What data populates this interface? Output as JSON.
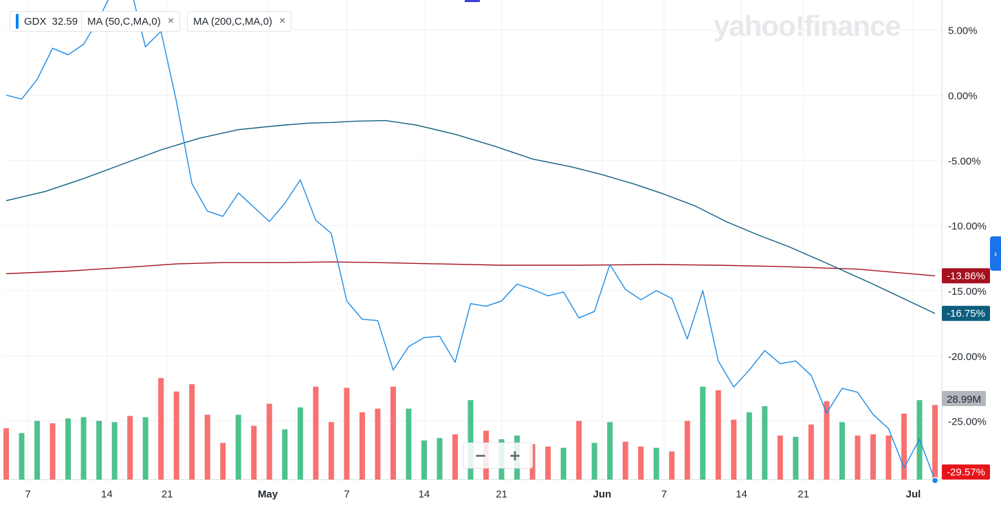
{
  "legend": {
    "ticker": "GDX",
    "price": "32.59",
    "ma50_label": "MA (50,C,MA,0)",
    "ma200_label": "MA (200,C,MA,0)",
    "close_symbol": "×"
  },
  "logo": "yahoo!finance",
  "zoom": {
    "minus": "−",
    "plus": "+"
  },
  "nav_arrow": "›",
  "colors": {
    "price": "#1a8ae5",
    "ma50": "#0d5e7e",
    "ma200": "#a5101e",
    "vol_up": "#4dc28d",
    "vol_down": "#f87171",
    "grid": "#eef0f3"
  },
  "chart_data": {
    "type": "line",
    "y_unit": "percent change",
    "ylim": [
      -29.5,
      7.3
    ],
    "y_ticks": [
      "5.00%",
      "0.00%",
      "-5.00%",
      "-10.00%",
      "-15.00%",
      "-20.00%",
      "-25.00%"
    ],
    "y_tick_values": [
      5,
      0,
      -5,
      -10,
      -15,
      -20,
      -25
    ],
    "x_ticks": [
      "7",
      "14",
      "21",
      "May",
      "7",
      "14",
      "21",
      "Jun",
      "7",
      "14",
      "21",
      "Jul"
    ],
    "x_tick_index": [
      1.4,
      6.5,
      10.4,
      16.9,
      22.0,
      27.0,
      32.0,
      38.5,
      42.5,
      47.5,
      51.5,
      58.6
    ],
    "series": [
      {
        "name": "GDX",
        "last_label": "-29.57%",
        "values": [
          0,
          -0.3,
          1.2,
          3.6,
          3.1,
          3.9,
          5.9,
          8.3,
          8.4,
          3.7,
          4.9,
          -0.5,
          -6.8,
          -8.9,
          -9.3,
          -7.5,
          -8.6,
          -9.7,
          -8.3,
          -6.5,
          -9.6,
          -10.6,
          -15.8,
          -17.2,
          -17.3,
          -21.1,
          -19.3,
          -18.6,
          -18.5,
          -20.5,
          -16.0,
          -16.2,
          -15.8,
          -14.5,
          -14.9,
          -15.4,
          -15.1,
          -17.1,
          -16.6,
          -13.0,
          -14.9,
          -15.7,
          -15.0,
          -15.6,
          -18.7,
          -15.0,
          -20.4,
          -22.4,
          -21.1,
          -19.6,
          -20.6,
          -20.4,
          -21.5,
          -24.4,
          -22.5,
          -22.8,
          -24.5,
          -25.6,
          -28.6,
          -26.4,
          -29.57
        ]
      },
      {
        "name": "MA (50,C,MA,0)",
        "last_label": "-16.75%",
        "values": [
          -8.1,
          -7.4,
          -6.4,
          -5.3,
          -4.2,
          -3.3,
          -2.65,
          -2.35,
          -2.15,
          -2.1,
          -2.0,
          -1.95,
          -2.3,
          -3.0,
          -3.9,
          -4.9,
          -5.5,
          -6.1,
          -6.8,
          -7.6,
          -8.5,
          -9.7,
          -10.7,
          -11.6,
          -12.9,
          -14.5,
          -16.75
        ],
        "x_index": [
          0,
          2.5,
          5,
          7.5,
          10,
          12.5,
          15,
          17.5,
          19.5,
          21,
          22.5,
          24.5,
          26.5,
          29,
          31.5,
          34,
          36.5,
          38.5,
          40.5,
          42.5,
          44.5,
          46.5,
          48.5,
          50.5,
          53,
          56,
          60
        ]
      },
      {
        "name": "MA (200,C,MA,0)",
        "last_label": "-13.86%",
        "values": [
          -13.7,
          -13.5,
          -13.2,
          -12.95,
          -12.85,
          -12.85,
          -12.8,
          -12.85,
          -12.95,
          -13.05,
          -13.05,
          -13.0,
          -13.05,
          -13.15,
          -13.35,
          -13.86
        ],
        "x_index": [
          0,
          4,
          8,
          11,
          14,
          18,
          21,
          24,
          28,
          32,
          37,
          42,
          46,
          50,
          55,
          60
        ]
      }
    ],
    "volume": {
      "last_label": "28.99M",
      "values": [
        42,
        38,
        48,
        46,
        50,
        51,
        48,
        47,
        52,
        51,
        83,
        72,
        78,
        53,
        30,
        53,
        44,
        62,
        41,
        59,
        76,
        47,
        75,
        55,
        58,
        76,
        58,
        32,
        34,
        37,
        65,
        40,
        33,
        36,
        29,
        27,
        26,
        48,
        30,
        47,
        31,
        27,
        26,
        23,
        48,
        76,
        73,
        49,
        55,
        60,
        36,
        35,
        45,
        64,
        47,
        36,
        37,
        36,
        54,
        65,
        61
      ],
      "direction": [
        "d",
        "u",
        "u",
        "d",
        "u",
        "u",
        "u",
        "u",
        "d",
        "u",
        "d",
        "d",
        "d",
        "d",
        "d",
        "u",
        "d",
        "d",
        "u",
        "u",
        "d",
        "d",
        "d",
        "d",
        "d",
        "d",
        "u",
        "u",
        "u",
        "d",
        "u",
        "d",
        "u",
        "u",
        "d",
        "d",
        "u",
        "d",
        "u",
        "u",
        "d",
        "d",
        "u",
        "d",
        "d",
        "u",
        "d",
        "d",
        "u",
        "u",
        "d",
        "u",
        "d",
        "d",
        "u",
        "d",
        "d",
        "d",
        "d",
        "u",
        "d"
      ]
    }
  }
}
